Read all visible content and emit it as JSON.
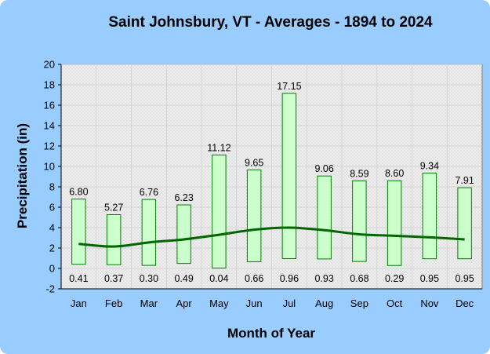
{
  "chart_data": {
    "type": "bar",
    "title": "Saint Johnsbury, VT - Averages - 1894 to 2024",
    "xlabel": "Month of Year",
    "ylabel": "Precipitation (in)",
    "ylim": [
      -2,
      20
    ],
    "ytick_step": 2,
    "grid": true,
    "categories": [
      "Jan",
      "Feb",
      "Mar",
      "Apr",
      "May",
      "Jun",
      "Jul",
      "Aug",
      "Sep",
      "Oct",
      "Nov",
      "Dec"
    ],
    "series": [
      {
        "kind": "floating-bar-max",
        "values": [
          6.8,
          5.27,
          6.76,
          6.23,
          11.12,
          9.65,
          17.15,
          9.06,
          8.59,
          8.6,
          9.34,
          7.91
        ],
        "labels": [
          "6.80",
          "5.27",
          "6.76",
          "6.23",
          "11.12",
          "9.65",
          "17.15",
          "9.06",
          "8.59",
          "8.60",
          "9.34",
          "7.91"
        ]
      },
      {
        "kind": "floating-bar-min",
        "values": [
          0.41,
          0.37,
          0.3,
          0.49,
          0.04,
          0.66,
          0.96,
          0.93,
          0.68,
          0.29,
          0.95,
          0.95
        ],
        "labels": [
          "0.41",
          "0.37",
          "0.30",
          "0.49",
          "0.04",
          "0.66",
          "0.96",
          "0.93",
          "0.68",
          "0.29",
          "0.95",
          "0.95"
        ]
      },
      {
        "kind": "line-average",
        "values": [
          2.4,
          2.15,
          2.55,
          2.85,
          3.3,
          3.8,
          4.0,
          3.75,
          3.35,
          3.2,
          3.05,
          2.85
        ]
      }
    ],
    "colors": {
      "background": "#99ccff",
      "plot_area": "#eeeeee",
      "grid": "#d0d0d0",
      "bar_fill": "#ccffcc",
      "bar_stroke": "#008000",
      "average_line": "#006600"
    }
  }
}
